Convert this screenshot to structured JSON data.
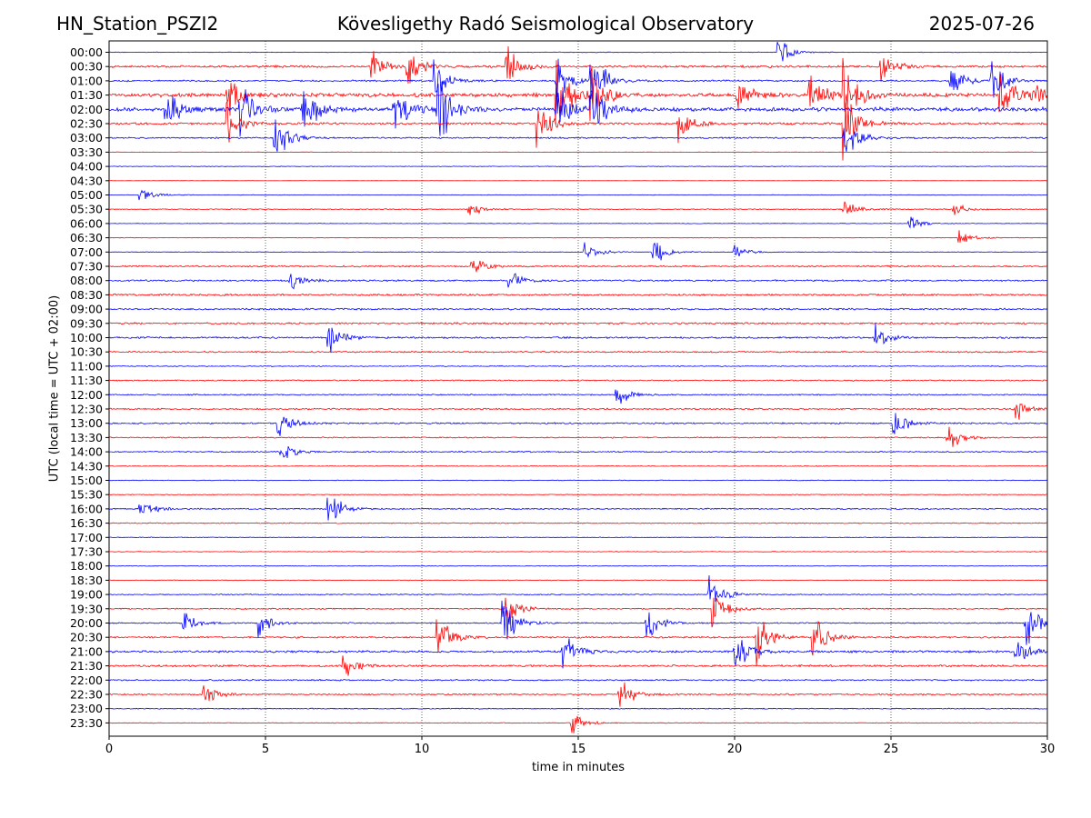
{
  "header": {
    "station": "HN_Station_PSZI2",
    "title": "Kövesligethy Radó Seismological Observatory",
    "date": "2025-07-26"
  },
  "chart_data": {
    "type": "line",
    "title": "Kövesligethy Radó Seismological Observatory",
    "xlabel": "time in minutes",
    "ylabel": "UTC (local time = UTC + 02:00)",
    "xlim": [
      0,
      30
    ],
    "xticks": [
      "0",
      "5",
      "10",
      "15",
      "20",
      "25",
      "30"
    ],
    "grid": "vertical dotted lines at 5-minute intervals",
    "colors": {
      "even_rows": "#0000ff",
      "odd_rows": "#ff0000"
    },
    "rows": [
      "00:00",
      "00:30",
      "01:00",
      "01:30",
      "02:00",
      "02:30",
      "03:00",
      "03:30",
      "04:00",
      "04:30",
      "05:00",
      "05:30",
      "06:00",
      "06:30",
      "07:00",
      "07:30",
      "08:00",
      "08:30",
      "09:00",
      "09:30",
      "10:00",
      "10:30",
      "11:00",
      "11:30",
      "12:00",
      "12:30",
      "13:00",
      "13:30",
      "14:00",
      "14:30",
      "15:00",
      "15:30",
      "16:00",
      "16:30",
      "17:00",
      "17:30",
      "18:00",
      "18:30",
      "19:00",
      "19:30",
      "20:00",
      "20:30",
      "21:00",
      "21:30",
      "22:00",
      "22:30",
      "23:00",
      "23:30"
    ],
    "noise": [
      0.12,
      0.45,
      0.35,
      0.75,
      0.8,
      0.45,
      0.3,
      0.1,
      0.12,
      0.05,
      0.12,
      0.18,
      0.1,
      0.12,
      0.12,
      0.3,
      0.35,
      0.38,
      0.35,
      0.38,
      0.35,
      0.3,
      0.2,
      0.25,
      0.25,
      0.3,
      0.3,
      0.25,
      0.25,
      0.15,
      0.15,
      0.15,
      0.25,
      0.2,
      0.15,
      0.12,
      0.12,
      0.15,
      0.2,
      0.25,
      0.25,
      0.35,
      0.45,
      0.4,
      0.3,
      0.3,
      0.2,
      0.15
    ],
    "events": [
      {
        "row": "00:00",
        "t": 21.4,
        "amp": 1.0
      },
      {
        "row": "00:30",
        "t": 8.4,
        "amp": 1.2
      },
      {
        "row": "00:30",
        "t": 9.5,
        "amp": 1.5
      },
      {
        "row": "00:30",
        "t": 12.7,
        "amp": 1.5
      },
      {
        "row": "00:30",
        "t": 24.7,
        "amp": 1.0
      },
      {
        "row": "01:00",
        "t": 10.4,
        "amp": 1.5
      },
      {
        "row": "01:00",
        "t": 14.3,
        "amp": 2.0
      },
      {
        "row": "01:00",
        "t": 15.4,
        "amp": 2.5
      },
      {
        "row": "01:00",
        "t": 26.9,
        "amp": 1.2
      },
      {
        "row": "01:00",
        "t": 28.2,
        "amp": 1.5
      },
      {
        "row": "01:30",
        "t": 3.8,
        "amp": 1.5
      },
      {
        "row": "01:30",
        "t": 14.3,
        "amp": 3.0
      },
      {
        "row": "01:30",
        "t": 15.4,
        "amp": 2.5
      },
      {
        "row": "01:30",
        "t": 20.1,
        "amp": 1.5
      },
      {
        "row": "01:30",
        "t": 22.4,
        "amp": 1.8
      },
      {
        "row": "01:30",
        "t": 23.5,
        "amp": 3.0
      },
      {
        "row": "01:30",
        "t": 28.5,
        "amp": 2.0
      },
      {
        "row": "01:30",
        "t": 29.5,
        "amp": 2.0
      },
      {
        "row": "02:00",
        "t": 1.8,
        "amp": 1.5
      },
      {
        "row": "02:00",
        "t": 4.2,
        "amp": 1.8
      },
      {
        "row": "02:00",
        "t": 6.2,
        "amp": 2.0
      },
      {
        "row": "02:00",
        "t": 9.1,
        "amp": 1.8
      },
      {
        "row": "02:00",
        "t": 10.5,
        "amp": 3.0
      },
      {
        "row": "02:00",
        "t": 14.3,
        "amp": 2.0
      },
      {
        "row": "02:00",
        "t": 15.4,
        "amp": 2.0
      },
      {
        "row": "02:30",
        "t": 3.8,
        "amp": 1.5
      },
      {
        "row": "02:30",
        "t": 13.7,
        "amp": 1.8
      },
      {
        "row": "02:30",
        "t": 18.2,
        "amp": 1.2
      },
      {
        "row": "02:30",
        "t": 23.5,
        "amp": 2.5
      },
      {
        "row": "03:00",
        "t": 5.3,
        "amp": 2.0
      },
      {
        "row": "03:00",
        "t": 23.5,
        "amp": 2.0
      },
      {
        "row": "05:00",
        "t": 1.0,
        "amp": 0.6
      },
      {
        "row": "05:30",
        "t": 11.5,
        "amp": 0.6
      },
      {
        "row": "05:30",
        "t": 23.5,
        "amp": 0.6
      },
      {
        "row": "05:30",
        "t": 27.0,
        "amp": 0.5
      },
      {
        "row": "06:00",
        "t": 25.6,
        "amp": 0.6
      },
      {
        "row": "06:30",
        "t": 27.2,
        "amp": 0.5
      },
      {
        "row": "07:00",
        "t": 15.2,
        "amp": 0.8
      },
      {
        "row": "07:00",
        "t": 17.4,
        "amp": 1.0
      },
      {
        "row": "07:00",
        "t": 20.0,
        "amp": 0.5
      },
      {
        "row": "07:30",
        "t": 11.6,
        "amp": 0.7
      },
      {
        "row": "08:00",
        "t": 5.8,
        "amp": 0.8
      },
      {
        "row": "08:00",
        "t": 12.8,
        "amp": 0.7
      },
      {
        "row": "10:00",
        "t": 7.0,
        "amp": 1.4
      },
      {
        "row": "10:00",
        "t": 24.5,
        "amp": 1.0
      },
      {
        "row": "12:00",
        "t": 16.2,
        "amp": 0.9
      },
      {
        "row": "12:30",
        "t": 29.0,
        "amp": 0.8
      },
      {
        "row": "13:00",
        "t": 5.4,
        "amp": 1.0
      },
      {
        "row": "13:00",
        "t": 25.1,
        "amp": 1.2
      },
      {
        "row": "13:30",
        "t": 26.8,
        "amp": 1.0
      },
      {
        "row": "14:00",
        "t": 5.5,
        "amp": 0.8
      },
      {
        "row": "16:00",
        "t": 7.0,
        "amp": 1.4
      },
      {
        "row": "16:00",
        "t": 1.0,
        "amp": 0.8
      },
      {
        "row": "19:00",
        "t": 19.2,
        "amp": 1.3
      },
      {
        "row": "19:30",
        "t": 19.3,
        "amp": 1.8
      },
      {
        "row": "19:30",
        "t": 12.7,
        "amp": 1.2
      },
      {
        "row": "20:00",
        "t": 12.6,
        "amp": 2.0
      },
      {
        "row": "20:00",
        "t": 4.8,
        "amp": 1.0
      },
      {
        "row": "20:00",
        "t": 17.2,
        "amp": 1.2
      },
      {
        "row": "20:00",
        "t": 2.4,
        "amp": 0.8
      },
      {
        "row": "20:00",
        "t": 29.3,
        "amp": 2.0
      },
      {
        "row": "20:30",
        "t": 10.5,
        "amp": 1.8
      },
      {
        "row": "20:30",
        "t": 20.7,
        "amp": 2.0
      },
      {
        "row": "20:30",
        "t": 22.5,
        "amp": 1.8
      },
      {
        "row": "21:00",
        "t": 14.5,
        "amp": 1.5
      },
      {
        "row": "21:00",
        "t": 20.0,
        "amp": 1.6
      },
      {
        "row": "21:00",
        "t": 29.0,
        "amp": 1.0
      },
      {
        "row": "21:30",
        "t": 7.5,
        "amp": 0.9
      },
      {
        "row": "22:30",
        "t": 16.3,
        "amp": 1.4
      },
      {
        "row": "22:30",
        "t": 3.0,
        "amp": 1.0
      },
      {
        "row": "23:30",
        "t": 14.8,
        "amp": 0.8
      }
    ]
  }
}
